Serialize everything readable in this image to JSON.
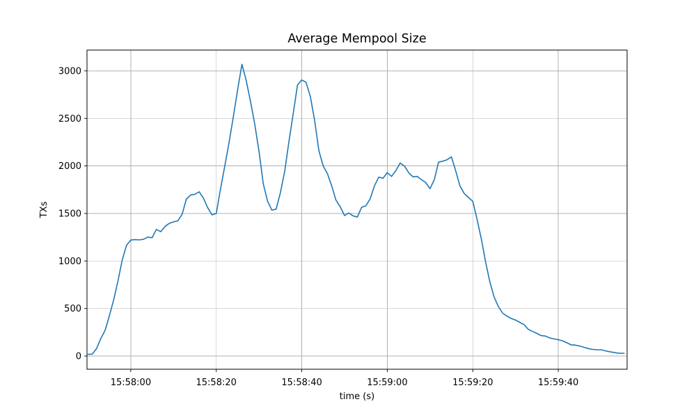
{
  "figure_title": "Average Mempool Size",
  "chart_data": {
    "type": "line",
    "title": "Average Mempool Size",
    "xlabel": "time (s)",
    "ylabel": "TXs",
    "grid": true,
    "legend_position": "none",
    "line_color": "#1f77b4",
    "grid_color": "#b0b0b0",
    "x_tick_labels": [
      "15:58:00",
      "15:58:20",
      "15:58:40",
      "15:59:00",
      "15:59:20",
      "15:59:40"
    ],
    "x_tick_seconds": [
      0,
      20,
      40,
      60,
      80,
      100
    ],
    "y_tick_labels": [
      "0",
      "500",
      "1000",
      "1500",
      "2000",
      "2500",
      "3000"
    ],
    "y_ticks": [
      0,
      500,
      1000,
      1500,
      2000,
      2500,
      3000
    ],
    "xlim_seconds": [
      -10.24,
      116.1
    ],
    "ylim": [
      -139,
      3219
    ],
    "series": [
      {
        "name": "average-mempool-size",
        "x_seconds_relative_to_15_58_00": [
          -10,
          -9,
          -8,
          -7,
          -6,
          -5,
          -4,
          -3,
          -2,
          -1,
          0,
          1,
          2,
          3,
          4,
          5,
          6,
          7,
          8,
          9,
          10,
          11,
          12,
          13,
          14,
          15,
          16,
          17,
          18,
          19,
          20,
          21,
          22,
          23,
          24,
          25,
          26,
          27,
          28,
          29,
          30,
          31,
          32,
          33,
          34,
          35,
          36,
          37,
          38,
          39,
          40,
          41,
          42,
          43,
          44,
          45,
          46,
          47,
          48,
          49,
          50,
          51,
          52,
          53,
          54,
          55,
          56,
          57,
          58,
          59,
          60,
          61,
          62,
          63,
          64,
          65,
          66,
          67,
          68,
          69,
          70,
          71,
          72,
          73,
          74,
          75,
          76,
          77,
          78,
          79,
          80,
          81,
          82,
          83,
          84,
          85,
          86,
          87,
          88,
          89,
          90,
          91,
          92,
          93,
          94,
          95,
          96,
          97,
          98,
          99,
          100,
          101,
          102,
          103,
          104,
          105,
          106,
          107,
          108,
          109,
          110,
          111,
          112,
          113,
          114,
          115,
          115.4
        ],
        "txs": [
          18,
          20,
          80,
          185,
          270,
          425,
          590,
          790,
          1010,
          1165,
          1220,
          1225,
          1222,
          1228,
          1252,
          1245,
          1332,
          1308,
          1362,
          1396,
          1412,
          1422,
          1490,
          1650,
          1695,
          1702,
          1728,
          1660,
          1560,
          1485,
          1500,
          1760,
          2000,
          2250,
          2520,
          2800,
          3070,
          2900,
          2680,
          2440,
          2150,
          1810,
          1630,
          1535,
          1545,
          1720,
          1940,
          2260,
          2550,
          2850,
          2905,
          2880,
          2730,
          2480,
          2160,
          2000,
          1920,
          1790,
          1640,
          1570,
          1478,
          1505,
          1475,
          1462,
          1565,
          1580,
          1655,
          1790,
          1882,
          1870,
          1930,
          1890,
          1950,
          2030,
          2000,
          1930,
          1885,
          1890,
          1855,
          1825,
          1760,
          1855,
          2040,
          2050,
          2065,
          2095,
          1950,
          1790,
          1710,
          1668,
          1628,
          1440,
          1230,
          990,
          780,
          620,
          520,
          450,
          420,
          395,
          378,
          355,
          330,
          280,
          258,
          238,
          215,
          210,
          190,
          180,
          172,
          160,
          140,
          118,
          115,
          105,
          92,
          78,
          70,
          66,
          66,
          55,
          45,
          38,
          30,
          29,
          29
        ]
      }
    ]
  }
}
